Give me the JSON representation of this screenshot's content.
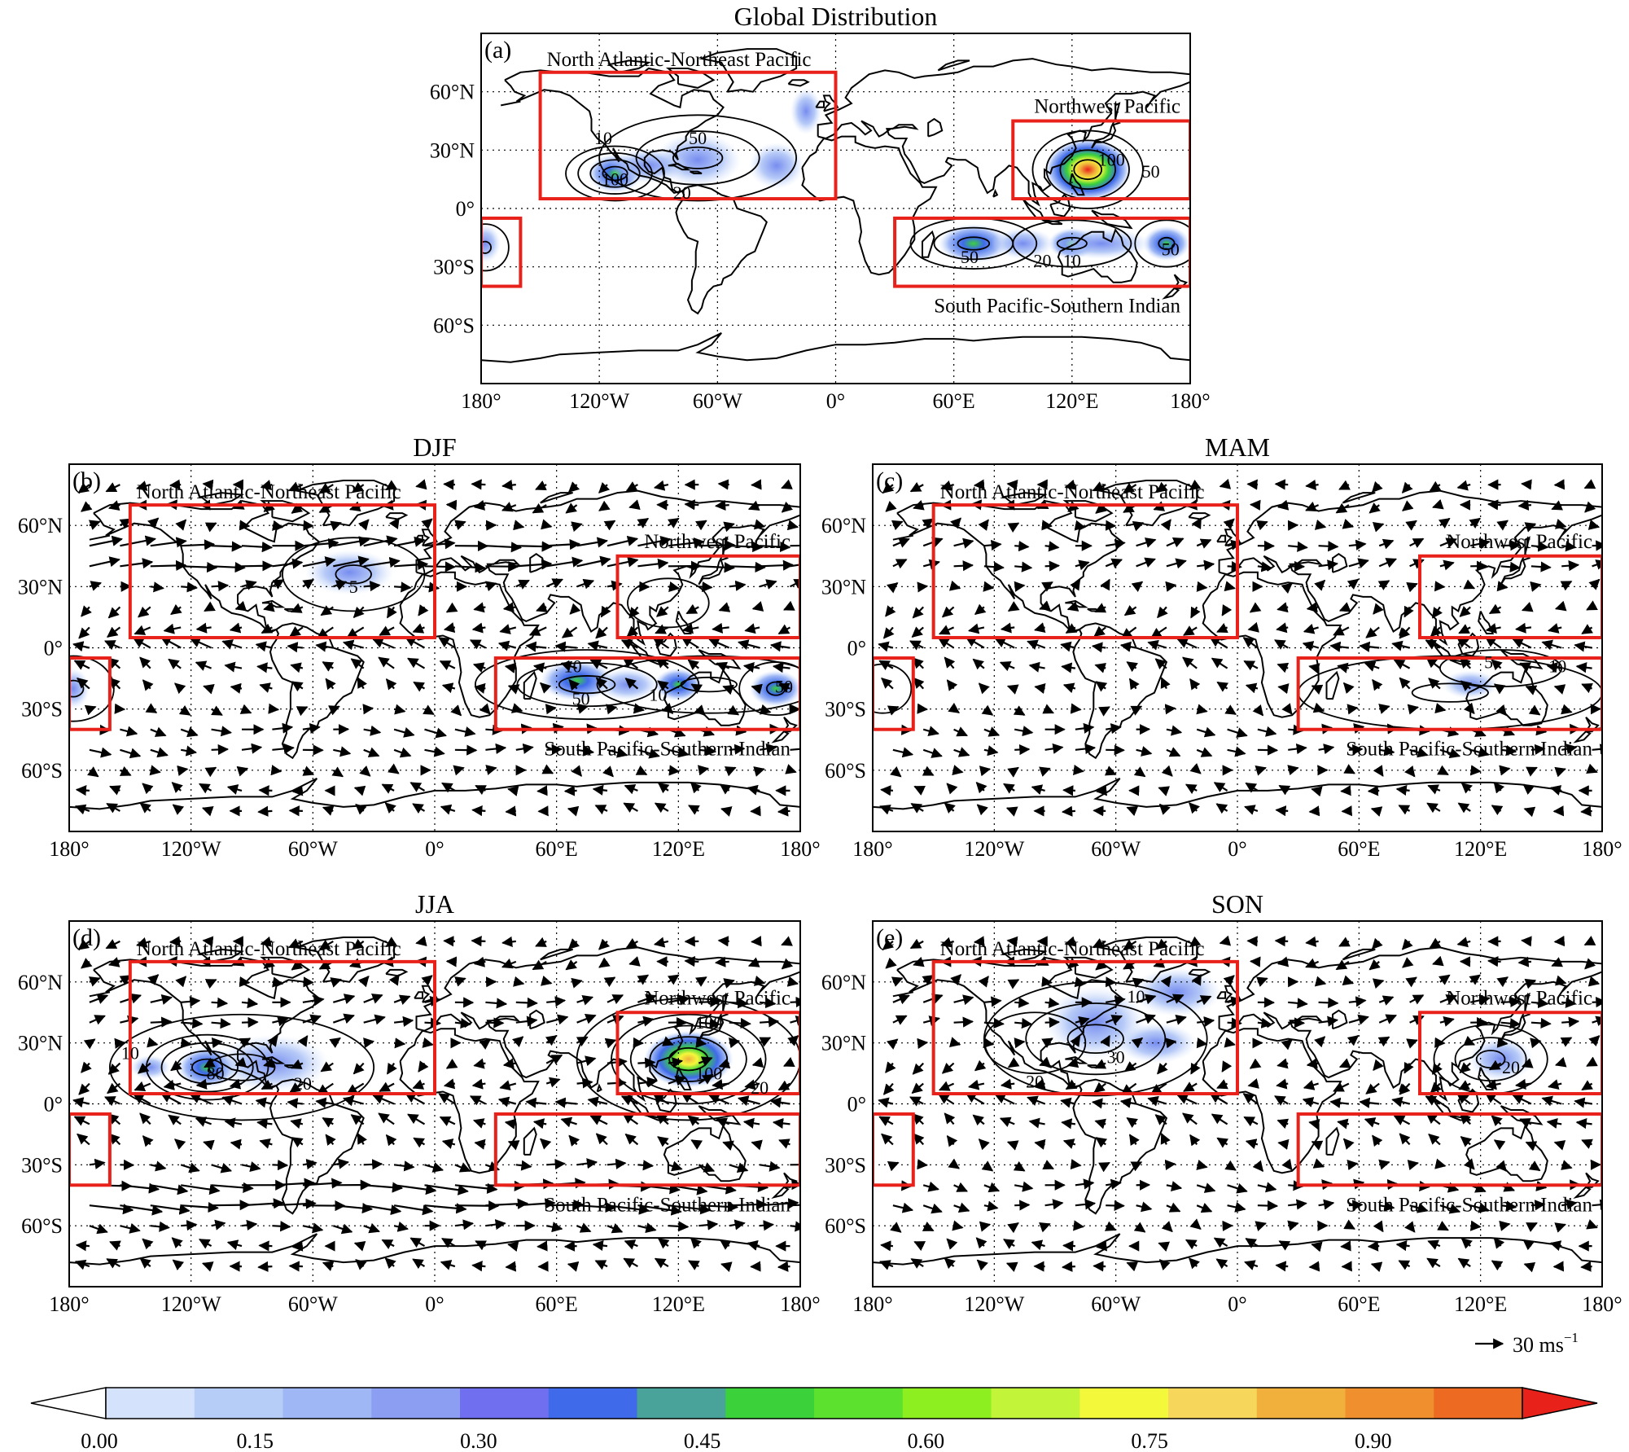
{
  "colors": {
    "region_box": "#e8221b",
    "colorbar": [
      "#ffffff",
      "#d4e3fb",
      "#b6cdf7",
      "#9fb8f5",
      "#8b9ef2",
      "#6f6ff0",
      "#3f6ae9",
      "#4aa39a",
      "#3ad13a",
      "#5ce22e",
      "#8eef20",
      "#c2f43a",
      "#f4f83b",
      "#f6d65b",
      "#f1b03b",
      "#ef8f2d",
      "#ec6a22",
      "#e8221b"
    ]
  },
  "panels": [
    {
      "id": "a",
      "title": "Global Distribution",
      "label": "(a)",
      "show_vectors": false,
      "regions": {
        "nanep": "North Atlantic-Northeast Pacific",
        "nwp": "Northwest Pacific",
        "spsi": "South Pacific-Southern Indian"
      },
      "contour_labels": [
        "10",
        "50",
        "100",
        "20",
        "100",
        "50",
        "50",
        "20",
        "10",
        "50"
      ],
      "lat_ticks": [
        "60°N",
        "30°N",
        "0°",
        "30°S",
        "60°S"
      ],
      "lon_ticks": [
        "180°",
        "120°W",
        "60°W",
        "0°",
        "60°E",
        "120°E",
        "180°"
      ]
    },
    {
      "id": "b",
      "title": "DJF",
      "label": "(b)",
      "show_vectors": true,
      "regions": {
        "nanep": "North Atlantic-Northeast Pacific",
        "nwp": "Northwest Pacific",
        "spsi": "South Pacific-Southern Indian"
      },
      "contour_labels": [
        "5",
        "10",
        "50",
        "10",
        "50"
      ],
      "lat_ticks": [
        "60°N",
        "30°N",
        "0°",
        "30°S",
        "60°S"
      ],
      "lon_ticks": [
        "180°",
        "120°W",
        "60°W",
        "0°",
        "60°E",
        "120°E",
        "180°"
      ]
    },
    {
      "id": "c",
      "title": "MAM",
      "label": "(c)",
      "show_vectors": true,
      "regions": {
        "nanep": "North Atlantic-Northeast Pacific",
        "nwp": "Northwest Pacific",
        "spsi": "South Pacific-Southern Indian"
      },
      "contour_labels": [
        "5",
        "10"
      ],
      "lat_ticks": [
        "60°N",
        "30°N",
        "0°",
        "30°S",
        "60°S"
      ],
      "lon_ticks": [
        "180°",
        "120°W",
        "60°W",
        "0°",
        "60°E",
        "120°E",
        "180°"
      ]
    },
    {
      "id": "d",
      "title": "JJA",
      "label": "(d)",
      "show_vectors": true,
      "regions": {
        "nanep": "North Atlantic-Northeast Pacific",
        "nwp": "Northwest Pacific",
        "spsi": "South Pacific-Southern Indian"
      },
      "contour_labels": [
        "10",
        "80",
        "20",
        "100",
        "100",
        "20"
      ],
      "lat_ticks": [
        "60°N",
        "30°N",
        "0°",
        "30°S",
        "60°S"
      ],
      "lon_ticks": [
        "180°",
        "120°W",
        "60°W",
        "0°",
        "60°E",
        "120°E",
        "180°"
      ]
    },
    {
      "id": "e",
      "title": "SON",
      "label": "(e)",
      "show_vectors": true,
      "regions": {
        "nanep": "North Atlantic-Northeast Pacific",
        "nwp": "Northwest Pacific",
        "spsi": "South Pacific-Southern Indian"
      },
      "contour_labels": [
        "10",
        "20",
        "30",
        "20"
      ],
      "lat_ticks": [
        "60°N",
        "30°N",
        "0°",
        "30°S",
        "60°S"
      ],
      "lon_ticks": [
        "180°",
        "120°W",
        "60°W",
        "0°",
        "60°E",
        "120°E",
        "180°"
      ]
    }
  ],
  "reference_vector": {
    "label": "30 ms",
    "unit_superscript": "−1"
  },
  "colorbar": {
    "ticks": [
      {
        "value": 0.0,
        "label": "0.00"
      },
      {
        "value": 0.15,
        "label": "0.15"
      },
      {
        "value": 0.3,
        "label": "0.30"
      },
      {
        "value": 0.45,
        "label": "0.45"
      },
      {
        "value": 0.6,
        "label": "0.60"
      },
      {
        "value": 0.75,
        "label": "0.75"
      },
      {
        "value": 0.9,
        "label": "0.90"
      }
    ],
    "min": 0.0,
    "max": 1.0
  }
}
